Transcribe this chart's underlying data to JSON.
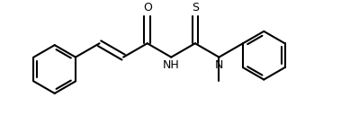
{
  "bg_color": "#ffffff",
  "line_color": "#000000",
  "line_width": 1.5,
  "fig_width": 3.89,
  "fig_height": 1.48,
  "dpi": 100,
  "xlim": [
    0,
    389
  ],
  "ylim": [
    0,
    148
  ]
}
